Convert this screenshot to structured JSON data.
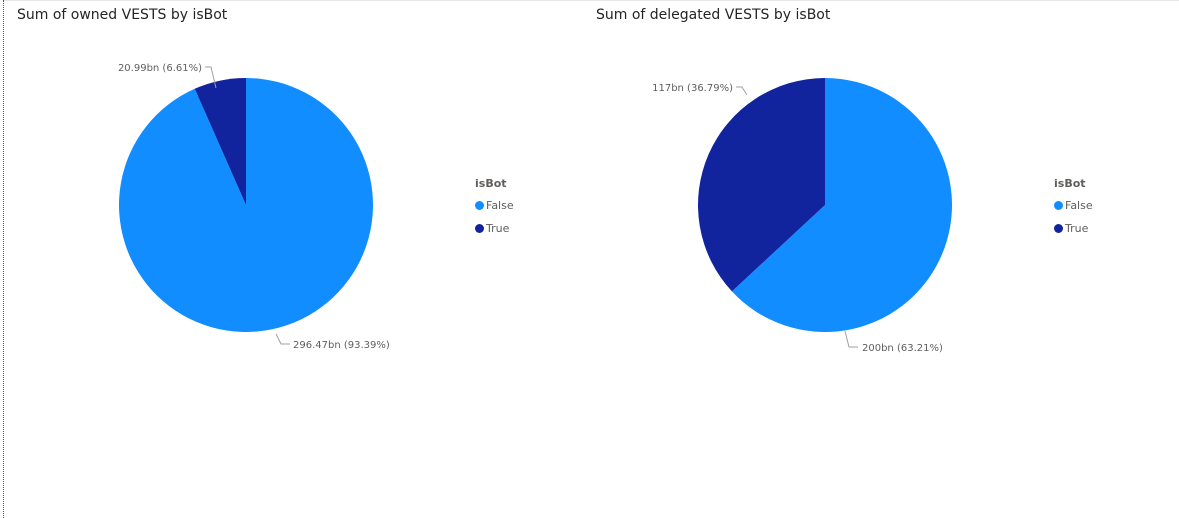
{
  "chart_data": [
    {
      "type": "pie",
      "title": "Sum of owned VESTS by isBot",
      "legend_title": "isBot",
      "legend_position": "right",
      "slices": [
        {
          "name": "False",
          "value": 296.47,
          "percent": 93.39,
          "label": "296.47bn (93.39%)",
          "color": "#118DFF"
        },
        {
          "name": "True",
          "value": 20.99,
          "percent": 6.61,
          "label": "20.99bn (6.61%)",
          "color": "#12239E"
        }
      ]
    },
    {
      "type": "pie",
      "title": "Sum of delegated VESTS by isBot",
      "legend_title": "isBot",
      "legend_position": "right",
      "slices": [
        {
          "name": "False",
          "value": 200,
          "percent": 63.21,
          "label": "200bn (63.21%)",
          "color": "#118DFF"
        },
        {
          "name": "True",
          "value": 117,
          "percent": 36.79,
          "label": "117bn (36.79%)",
          "color": "#12239E"
        }
      ]
    }
  ]
}
